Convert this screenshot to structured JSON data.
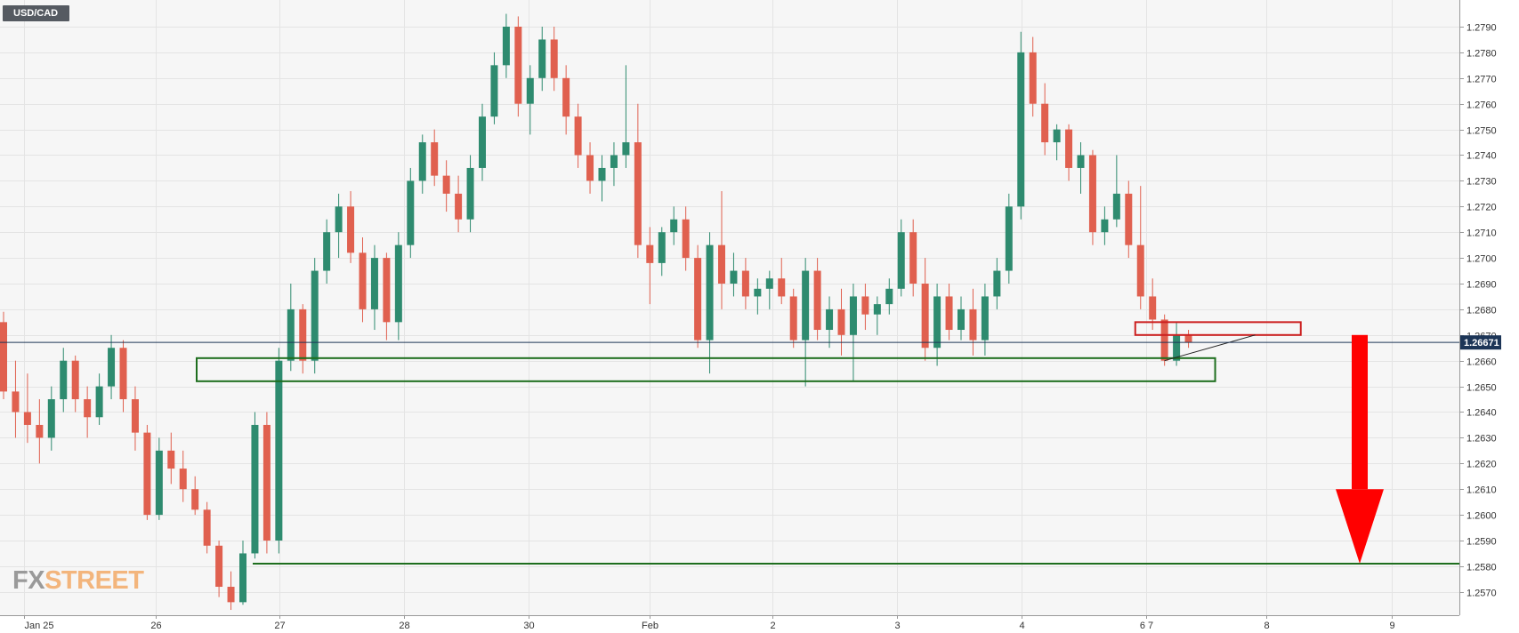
{
  "symbol": "USD/CAD",
  "logo": {
    "part1": "FX",
    "part2": "STREET"
  },
  "colors": {
    "bullish": "#2e8b6f",
    "bearish": "#e0604f",
    "background": "#f6f6f6",
    "support_box": "#1e6e1e",
    "resistance_box": "#cc1f1f",
    "arrow": "#ff0000",
    "price_label_bg": "#1c3557"
  },
  "chart_data": {
    "type": "candlestick",
    "title": "USD/CAD",
    "ylim": [
      1.2565,
      1.2795
    ],
    "y_ticks": [
      "1.2790",
      "1.2780",
      "1.2770",
      "1.2760",
      "1.2750",
      "1.2740",
      "1.2730",
      "1.2720",
      "1.2710",
      "1.2700",
      "1.2690",
      "1.2680",
      "1.2670",
      "1.2660",
      "1.2650",
      "1.2640",
      "1.2630",
      "1.2620",
      "1.2610",
      "1.2600",
      "1.2590",
      "1.2580",
      "1.2570"
    ],
    "x_labels": [
      "Jan 25",
      "26",
      "27",
      "28",
      "30",
      "Feb",
      "2",
      "3",
      "4",
      "6 7",
      "8",
      "9"
    ],
    "current_price": "1.26671",
    "grid": true,
    "annotations": {
      "support_zone": [
        1.2652,
        1.2661
      ],
      "resistance_zone": [
        1.267,
        1.2675
      ],
      "target_level": 1.2581,
      "arrow": "down, from 1.2670 to 1.2581"
    },
    "candles": [
      [
        1.2675,
        1.2679,
        1.2645,
        1.2648
      ],
      [
        1.2648,
        1.266,
        1.263,
        1.264
      ],
      [
        1.264,
        1.2655,
        1.2628,
        1.2635
      ],
      [
        1.2635,
        1.2645,
        1.262,
        1.263
      ],
      [
        1.263,
        1.265,
        1.2625,
        1.2645
      ],
      [
        1.2645,
        1.2665,
        1.264,
        1.266
      ],
      [
        1.266,
        1.2662,
        1.264,
        1.2645
      ],
      [
        1.2645,
        1.265,
        1.263,
        1.2638
      ],
      [
        1.2638,
        1.2655,
        1.2635,
        1.265
      ],
      [
        1.265,
        1.267,
        1.2645,
        1.2665
      ],
      [
        1.2665,
        1.2668,
        1.264,
        1.2645
      ],
      [
        1.2645,
        1.265,
        1.2625,
        1.2632
      ],
      [
        1.2632,
        1.2635,
        1.2598,
        1.26
      ],
      [
        1.26,
        1.263,
        1.2598,
        1.2625
      ],
      [
        1.2625,
        1.2632,
        1.2612,
        1.2618
      ],
      [
        1.2618,
        1.2625,
        1.2605,
        1.261
      ],
      [
        1.261,
        1.2615,
        1.26,
        1.2602
      ],
      [
        1.2602,
        1.2605,
        1.2585,
        1.2588
      ],
      [
        1.2588,
        1.259,
        1.2568,
        1.2572
      ],
      [
        1.2572,
        1.2578,
        1.2563,
        1.2566
      ],
      [
        1.2566,
        1.259,
        1.2565,
        1.2585
      ],
      [
        1.2585,
        1.264,
        1.2583,
        1.2635
      ],
      [
        1.2635,
        1.264,
        1.2585,
        1.259
      ],
      [
        1.259,
        1.2665,
        1.2585,
        1.266
      ],
      [
        1.266,
        1.269,
        1.2656,
        1.268
      ],
      [
        1.268,
        1.2682,
        1.2655,
        1.266
      ],
      [
        1.266,
        1.27,
        1.2655,
        1.2695
      ],
      [
        1.2695,
        1.2715,
        1.269,
        1.271
      ],
      [
        1.271,
        1.2725,
        1.27,
        1.272
      ],
      [
        1.272,
        1.2726,
        1.2698,
        1.2702
      ],
      [
        1.2702,
        1.2708,
        1.2675,
        1.268
      ],
      [
        1.268,
        1.2705,
        1.2672,
        1.27
      ],
      [
        1.27,
        1.2702,
        1.2668,
        1.2675
      ],
      [
        1.2675,
        1.271,
        1.2668,
        1.2705
      ],
      [
        1.2705,
        1.2735,
        1.27,
        1.273
      ],
      [
        1.273,
        1.2748,
        1.2725,
        1.2745
      ],
      [
        1.2745,
        1.275,
        1.2728,
        1.2732
      ],
      [
        1.2732,
        1.2738,
        1.2718,
        1.2725
      ],
      [
        1.2725,
        1.2732,
        1.271,
        1.2715
      ],
      [
        1.2715,
        1.274,
        1.271,
        1.2735
      ],
      [
        1.2735,
        1.276,
        1.273,
        1.2755
      ],
      [
        1.2755,
        1.278,
        1.2752,
        1.2775
      ],
      [
        1.2775,
        1.2795,
        1.277,
        1.279
      ],
      [
        1.279,
        1.2794,
        1.2755,
        1.276
      ],
      [
        1.276,
        1.2775,
        1.2748,
        1.277
      ],
      [
        1.277,
        1.279,
        1.2765,
        1.2785
      ],
      [
        1.2785,
        1.279,
        1.2765,
        1.277
      ],
      [
        1.277,
        1.2775,
        1.2748,
        1.2755
      ],
      [
        1.2755,
        1.276,
        1.2735,
        1.274
      ],
      [
        1.274,
        1.2745,
        1.2725,
        1.273
      ],
      [
        1.273,
        1.274,
        1.2722,
        1.2735
      ],
      [
        1.2735,
        1.2745,
        1.2728,
        1.274
      ],
      [
        1.274,
        1.2775,
        1.2735,
        1.2745
      ],
      [
        1.2745,
        1.276,
        1.27,
        1.2705
      ],
      [
        1.2705,
        1.2712,
        1.2682,
        1.2698
      ],
      [
        1.2698,
        1.2712,
        1.2693,
        1.271
      ],
      [
        1.271,
        1.272,
        1.2705,
        1.2715
      ],
      [
        1.2715,
        1.272,
        1.2695,
        1.27
      ],
      [
        1.27,
        1.2705,
        1.2665,
        1.2668
      ],
      [
        1.2668,
        1.271,
        1.2655,
        1.2705
      ],
      [
        1.2705,
        1.2726,
        1.268,
        1.269
      ],
      [
        1.269,
        1.2702,
        1.2685,
        1.2695
      ],
      [
        1.2695,
        1.27,
        1.268,
        1.2685
      ],
      [
        1.2685,
        1.2692,
        1.2678,
        1.2688
      ],
      [
        1.2688,
        1.2695,
        1.268,
        1.2692
      ],
      [
        1.2692,
        1.27,
        1.2682,
        1.2685
      ],
      [
        1.2685,
        1.2688,
        1.2665,
        1.2668
      ],
      [
        1.2668,
        1.27,
        1.265,
        1.2695
      ],
      [
        1.2695,
        1.27,
        1.2668,
        1.2672
      ],
      [
        1.2672,
        1.2685,
        1.2665,
        1.268
      ],
      [
        1.268,
        1.2688,
        1.2662,
        1.267
      ],
      [
        1.267,
        1.269,
        1.2652,
        1.2685
      ],
      [
        1.2685,
        1.269,
        1.2672,
        1.2678
      ],
      [
        1.2678,
        1.2685,
        1.267,
        1.2682
      ],
      [
        1.2682,
        1.2692,
        1.2678,
        1.2688
      ],
      [
        1.2688,
        1.2715,
        1.2685,
        1.271
      ],
      [
        1.271,
        1.2715,
        1.2685,
        1.269
      ],
      [
        1.269,
        1.27,
        1.266,
        1.2665
      ],
      [
        1.2665,
        1.269,
        1.2658,
        1.2685
      ],
      [
        1.2685,
        1.269,
        1.2668,
        1.2672
      ],
      [
        1.2672,
        1.2685,
        1.2668,
        1.268
      ],
      [
        1.268,
        1.2688,
        1.2662,
        1.2668
      ],
      [
        1.2668,
        1.269,
        1.2662,
        1.2685
      ],
      [
        1.2685,
        1.27,
        1.268,
        1.2695
      ],
      [
        1.2695,
        1.2725,
        1.269,
        1.272
      ],
      [
        1.272,
        1.2788,
        1.2715,
        1.278
      ],
      [
        1.278,
        1.2786,
        1.2755,
        1.276
      ],
      [
        1.276,
        1.2768,
        1.274,
        1.2745
      ],
      [
        1.2745,
        1.2752,
        1.2738,
        1.275
      ],
      [
        1.275,
        1.2752,
        1.273,
        1.2735
      ],
      [
        1.2735,
        1.2745,
        1.2725,
        1.274
      ],
      [
        1.274,
        1.2742,
        1.2705,
        1.271
      ],
      [
        1.271,
        1.272,
        1.2705,
        1.2715
      ],
      [
        1.2715,
        1.274,
        1.2712,
        1.2725
      ],
      [
        1.2725,
        1.273,
        1.27,
        1.2705
      ],
      [
        1.2705,
        1.2728,
        1.268,
        1.2685
      ],
      [
        1.2685,
        1.2692,
        1.2672,
        1.2676
      ],
      [
        1.2676,
        1.2678,
        1.2658,
        1.266
      ],
      [
        1.266,
        1.2675,
        1.2658,
        1.267
      ],
      [
        1.267,
        1.2672,
        1.2665,
        1.2667
      ]
    ]
  }
}
